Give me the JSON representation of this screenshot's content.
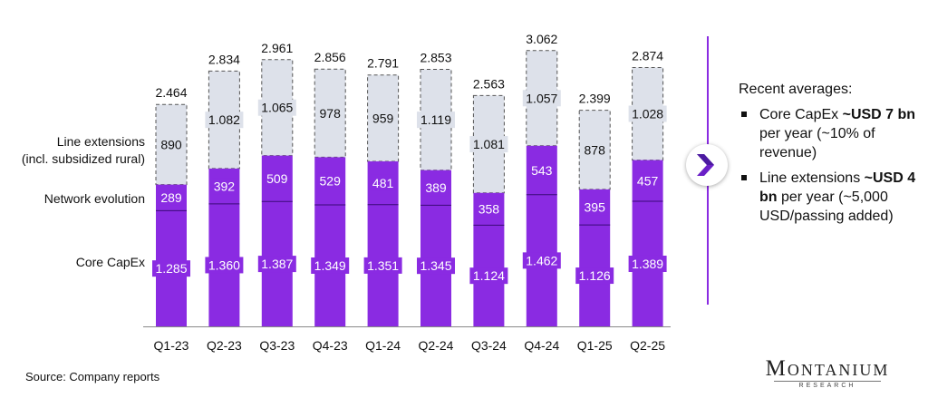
{
  "chart_data": {
    "type": "bar",
    "stacked": true,
    "categories": [
      "Q1-23",
      "Q2-23",
      "Q3-23",
      "Q4-23",
      "Q1-24",
      "Q2-24",
      "Q3-24",
      "Q4-24",
      "Q1-25",
      "Q2-25"
    ],
    "series": [
      {
        "name": "Core CapEx",
        "values": [
          1.285,
          1.36,
          1.387,
          1.349,
          1.351,
          1.345,
          1.124,
          1.462,
          1.126,
          1.389
        ],
        "labels": [
          "1.285",
          "1.360",
          "1.387",
          "1.349",
          "1.351",
          "1.345",
          "1.124",
          "1.462",
          "1.126",
          "1.389"
        ],
        "color": "#8a2be2"
      },
      {
        "name": "Network evolution",
        "values": [
          0.289,
          0.392,
          0.509,
          0.529,
          0.481,
          0.389,
          0.358,
          0.543,
          0.395,
          0.457
        ],
        "labels": [
          "289",
          "392",
          "509",
          "529",
          "481",
          "389",
          "358",
          "543",
          "395",
          "457"
        ],
        "color": "#8a2be2"
      },
      {
        "name": "Line extensions (incl. subsidized rural)",
        "values": [
          0.89,
          1.082,
          1.065,
          0.978,
          0.959,
          1.119,
          1.081,
          1.057,
          0.878,
          1.028
        ],
        "labels": [
          "890",
          "1.082",
          "1.065",
          "978",
          "959",
          "1.119",
          "1.081",
          "1.057",
          "878",
          "1.028"
        ],
        "color": "#dde1ea"
      }
    ],
    "totals": [
      2.464,
      2.834,
      2.961,
      2.856,
      2.791,
      2.853,
      2.563,
      3.062,
      2.399,
      2.874
    ],
    "total_labels": [
      "2.464",
      "2.834",
      "2.961",
      "2.856",
      "2.791",
      "2.853",
      "2.563",
      "3.062",
      "2.399",
      "2.874"
    ],
    "ylim": [
      0,
      3.1
    ]
  },
  "legend": {
    "line_ext_1": "Line extensions",
    "line_ext_2": "(incl. subsidized rural)",
    "network": "Network evolution",
    "core": "Core CapEx"
  },
  "panel": {
    "title": "Recent averages:",
    "b1_pre": "Core CapEx ",
    "b1_bold": "~USD 7 bn",
    "b1_post": " per year (~10% of revenue)",
    "b2_pre": "Line extensions ",
    "b2_bold": "~USD 4 bn",
    "b2_post": " per year (~5,000 USD/passing added)"
  },
  "footer": {
    "source": "Source: Company reports"
  },
  "logo": {
    "main": "Montanium",
    "sub": "RESEARCH"
  },
  "icons": {
    "arrow": "chevron-right-icon"
  },
  "colors": {
    "purple": "#8a2be2",
    "grey": "#dde1ea"
  }
}
